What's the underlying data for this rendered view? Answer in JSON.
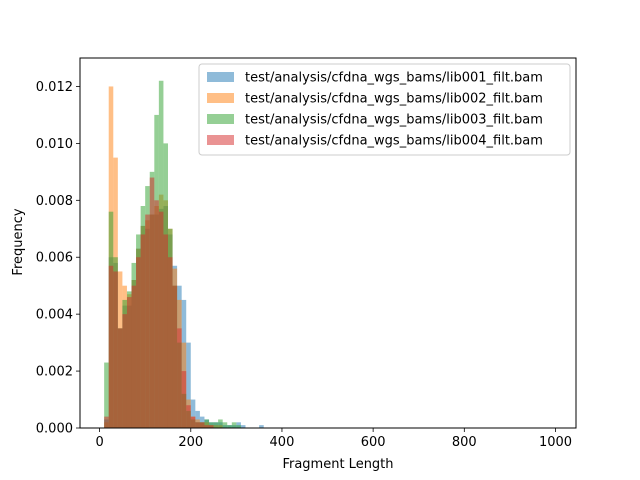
{
  "chart_data": {
    "type": "histogram",
    "title": "",
    "xlabel": "Fragment Length",
    "ylabel": "Frequency",
    "xlim": [
      -43,
      1045
    ],
    "ylim": [
      0,
      0.013
    ],
    "xticks": [
      0,
      200,
      400,
      600,
      800,
      1000
    ],
    "xtick_labels": [
      "0",
      "200",
      "400",
      "600",
      "800",
      "1000"
    ],
    "yticks": [
      0,
      0.002,
      0.004,
      0.006,
      0.008,
      0.01,
      0.012
    ],
    "ytick_labels": [
      "0.000",
      "0.002",
      "0.004",
      "0.006",
      "0.008",
      "0.010",
      "0.012"
    ],
    "grid": false,
    "legend_position": "upper right",
    "bin_edges": [
      10,
      20,
      30,
      40,
      50,
      60,
      70,
      80,
      90,
      100,
      110,
      120,
      130,
      140,
      150,
      160,
      170,
      180,
      190,
      200,
      210,
      220,
      230,
      240,
      250,
      260,
      270,
      280,
      290,
      300,
      310,
      320,
      330,
      340,
      350,
      360
    ],
    "series": [
      {
        "name": "test/analysis/cfdna_wgs_bams/lib001_filt.bam",
        "color": "#1f77b4",
        "alpha": 0.5,
        "values": [
          0.0003,
          0.006,
          0.0058,
          0.0035,
          0.0043,
          0.0043,
          0.0052,
          0.0063,
          0.0071,
          0.007,
          0.0075,
          0.0075,
          0.0077,
          0.0078,
          0.0068,
          0.0057,
          0.005,
          0.0045,
          0.003,
          0.001,
          0.0006,
          0.0004,
          0.0003,
          0.0002,
          0.0002,
          0.0002,
          0.0001,
          0.0001,
          0.0001,
          0.0002,
          0.0001,
          0,
          0,
          0,
          0.0001
        ]
      },
      {
        "name": "test/analysis/cfdna_wgs_bams/lib002_filt.bam",
        "color": "#ff7f0e",
        "alpha": 0.5,
        "values": [
          0.0002,
          0.012,
          0.0095,
          0.0055,
          0.005,
          0.0047,
          0.0052,
          0.0063,
          0.0071,
          0.0073,
          0.0075,
          0.0078,
          0.0082,
          0.008,
          0.007,
          0.0056,
          0.0045,
          0.003,
          0.001,
          0.0004,
          0.0003,
          0.0002,
          0.0002,
          0.0001,
          0.0001,
          0.0001,
          0,
          0,
          0,
          0,
          0,
          0,
          0,
          0,
          0
        ]
      },
      {
        "name": "test/analysis/cfdna_wgs_bams/lib003_filt.bam",
        "color": "#2ca02c",
        "alpha": 0.5,
        "values": [
          0.0023,
          0.0076,
          0.006,
          0.0035,
          0.0045,
          0.0048,
          0.0058,
          0.0068,
          0.0078,
          0.0085,
          0.009,
          0.011,
          0.0122,
          0.01,
          0.007,
          0.005,
          0.003,
          0.0012,
          0.0006,
          0.0003,
          0.0002,
          0.0002,
          0.0003,
          0.0002,
          0.0002,
          0.0003,
          0.0002,
          0.0001,
          0.0002,
          0.0001,
          0,
          0,
          0,
          0,
          0
        ]
      },
      {
        "name": "test/analysis/cfdna_wgs_bams/lib004_filt.bam",
        "color": "#d62728",
        "alpha": 0.5,
        "values": [
          0.0004,
          0.0057,
          0.0055,
          0.0035,
          0.004,
          0.0046,
          0.005,
          0.006,
          0.0068,
          0.0075,
          0.0088,
          0.008,
          0.0076,
          0.0068,
          0.006,
          0.005,
          0.0035,
          0.002,
          0.0008,
          0.0004,
          0.0002,
          0.0002,
          0.0001,
          0.0001,
          0,
          0,
          0,
          0,
          0,
          0,
          0,
          0,
          0,
          0,
          0
        ]
      }
    ]
  }
}
